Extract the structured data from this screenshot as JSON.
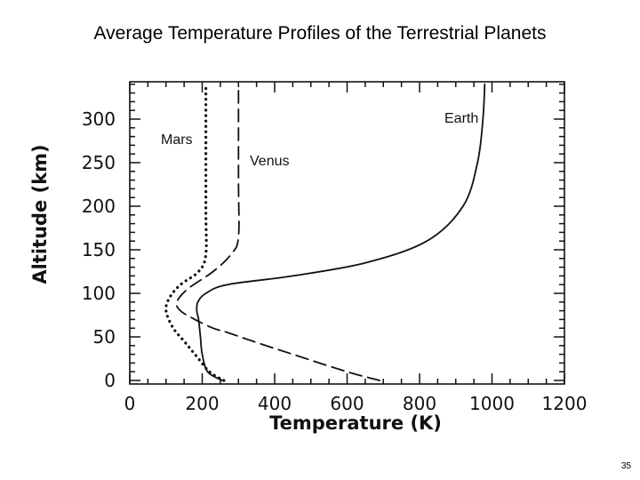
{
  "slide": {
    "title": "Average Temperature Profiles of the Terrestrial Planets",
    "page_number": "35"
  },
  "chart_data": {
    "type": "line",
    "title": "",
    "xlabel": "Temperature (K)",
    "ylabel": "Altitude (km)",
    "xlim": [
      0,
      1200
    ],
    "ylim": [
      0,
      340
    ],
    "x_ticks": [
      0,
      200,
      400,
      600,
      800,
      1000,
      1200
    ],
    "y_ticks": [
      0,
      50,
      100,
      150,
      200,
      250,
      300
    ],
    "grid": false,
    "series": [
      {
        "name": "Earth",
        "line_style": "solid",
        "points": [
          [
            255,
            0
          ],
          [
            215,
            10
          ],
          [
            200,
            30
          ],
          [
            195,
            50
          ],
          [
            190,
            70
          ],
          [
            185,
            80
          ],
          [
            188,
            90
          ],
          [
            210,
            100
          ],
          [
            270,
            110
          ],
          [
            450,
            120
          ],
          [
            650,
            135
          ],
          [
            820,
            160
          ],
          [
            920,
            200
          ],
          [
            960,
            250
          ],
          [
            975,
            300
          ],
          [
            980,
            340
          ]
        ]
      },
      {
        "name": "Venus",
        "line_style": "dashed",
        "points": [
          [
            690,
            0
          ],
          [
            600,
            10
          ],
          [
            450,
            30
          ],
          [
            340,
            45
          ],
          [
            270,
            55
          ],
          [
            230,
            60
          ],
          [
            180,
            70
          ],
          [
            140,
            80
          ],
          [
            130,
            90
          ],
          [
            160,
            105
          ],
          [
            230,
            125
          ],
          [
            280,
            145
          ],
          [
            300,
            165
          ],
          [
            300,
            230
          ],
          [
            300,
            340
          ]
        ]
      },
      {
        "name": "Mars",
        "line_style": "dotted",
        "points": [
          [
            260,
            0
          ],
          [
            220,
            10
          ],
          [
            180,
            30
          ],
          [
            150,
            45
          ],
          [
            120,
            60
          ],
          [
            100,
            80
          ],
          [
            110,
            95
          ],
          [
            140,
            110
          ],
          [
            190,
            125
          ],
          [
            210,
            145
          ],
          [
            210,
            200
          ],
          [
            210,
            340
          ]
        ]
      }
    ]
  }
}
